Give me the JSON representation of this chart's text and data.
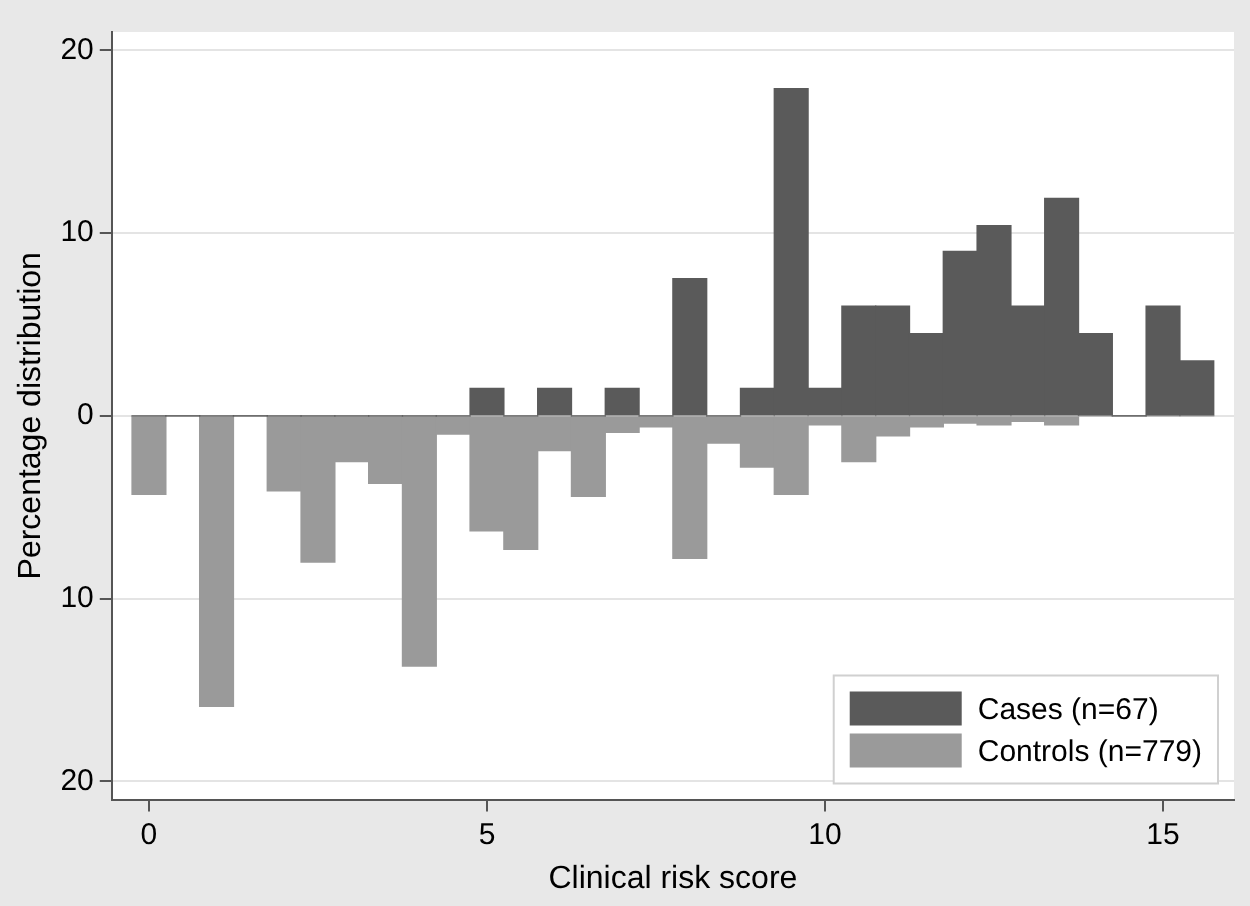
{
  "chart_data": {
    "type": "histogram",
    "xlabel": "Clinical risk score",
    "ylabel": "Percentage distribution",
    "bins": [
      -0.25,
      0.25,
      0.75,
      1.25,
      1.75,
      2.25,
      2.75,
      3.25,
      3.75,
      4.25,
      4.75,
      5.25,
      5.75,
      6.25,
      6.75,
      7.25,
      7.75,
      8.25,
      8.75,
      9.25,
      9.75,
      10.25,
      10.75,
      11.25,
      11.75,
      12.25,
      12.75,
      13.25,
      13.75,
      14.25,
      14.75,
      15.25,
      15.75
    ],
    "series": [
      {
        "name": "Cases (n=67)",
        "color": "#5a5a5a",
        "values": [
          0,
          0,
          0,
          0,
          0,
          0,
          0,
          0,
          0,
          0,
          1.5,
          0,
          1.5,
          0,
          1.5,
          0,
          7.5,
          0,
          1.5,
          17.9,
          1.5,
          6,
          6,
          4.5,
          9,
          10.4,
          6,
          11.9,
          4.5,
          0,
          6,
          3
        ]
      },
      {
        "name": "Controls (n=779)",
        "color": "#9a9a9a",
        "values": [
          -4.3,
          0,
          -15.9,
          0,
          -4.1,
          -8,
          -2.5,
          -3.7,
          -13.7,
          -1,
          -6.3,
          -7.3,
          -1.9,
          -4.4,
          -0.9,
          -0.6,
          -7.8,
          -1.5,
          -2.8,
          -4.3,
          -0.5,
          -2.5,
          -1.1,
          -0.6,
          -0.4,
          -0.5,
          -0.3,
          -0.5,
          0,
          0,
          0,
          0
        ]
      }
    ],
    "xlim": [
      -0.55,
      16.05
    ],
    "xticks": [
      0,
      5,
      10,
      15
    ],
    "ylim": [
      -21,
      21
    ],
    "yticks": [
      {
        "value": -20,
        "label": "20"
      },
      {
        "value": -10,
        "label": "10"
      },
      0,
      10,
      20
    ],
    "grid": "y",
    "legend": "bottom right"
  }
}
